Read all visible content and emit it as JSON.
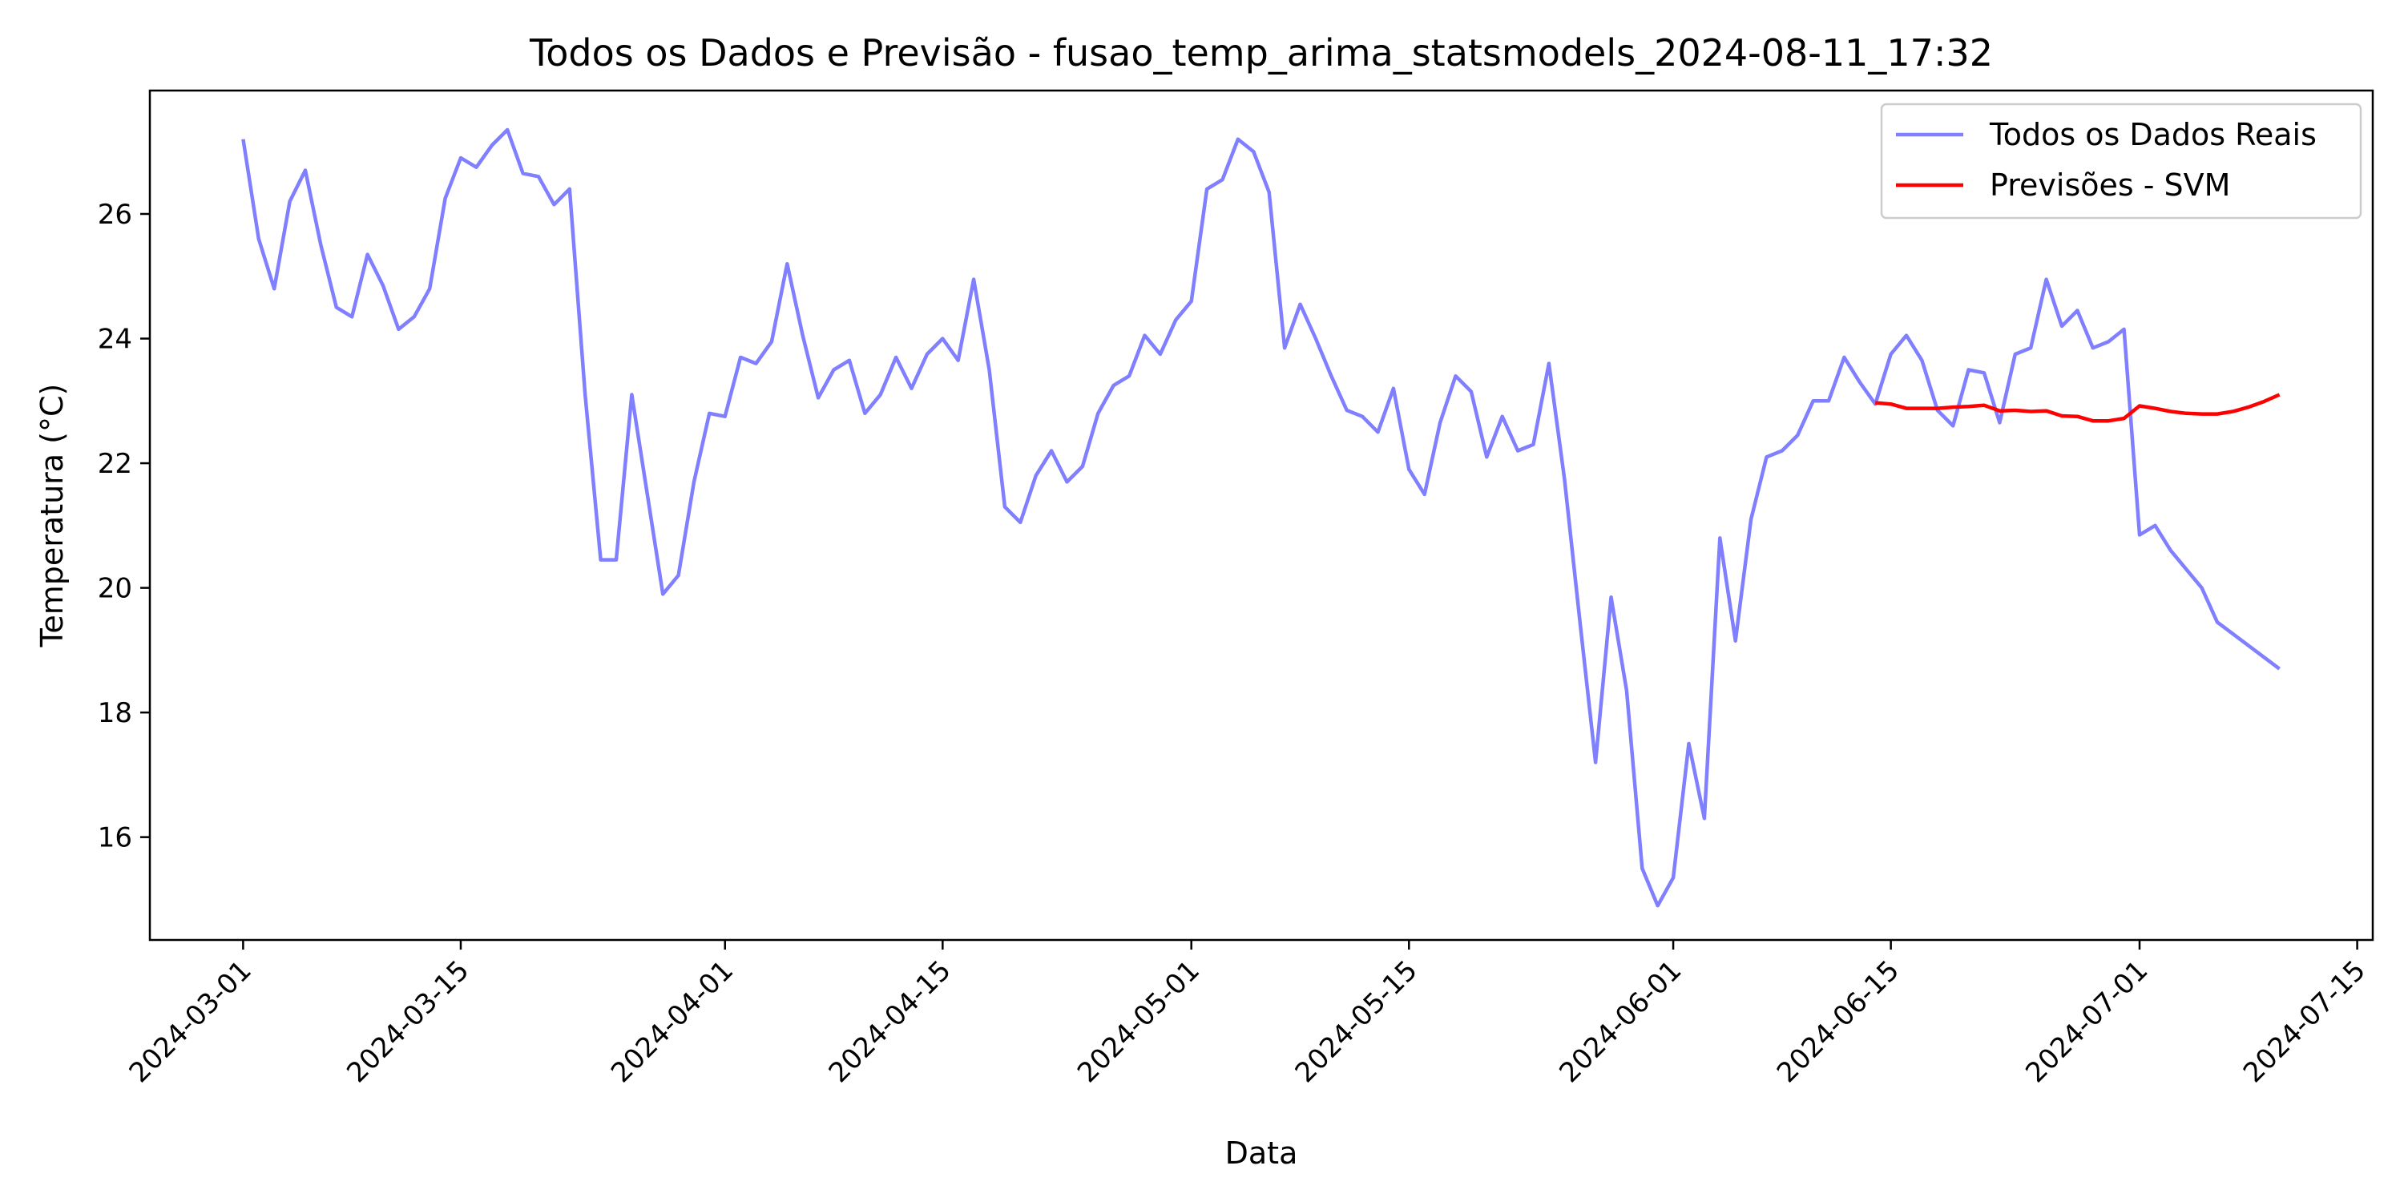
{
  "chart_data": {
    "type": "line",
    "title": "Todos os Dados e Previsão - fusao_temp_arima_statsmodels_2024-08-11_17:32",
    "xlabel": "Data",
    "ylabel": "Temperatura (°C)",
    "xlim": [
      "2024-02-24",
      "2024-07-16"
    ],
    "ylim": [
      14.35,
      27.98
    ],
    "x_ticks": [
      "2024-03-01",
      "2024-03-15",
      "2024-04-01",
      "2024-04-15",
      "2024-05-01",
      "2024-05-15",
      "2024-06-01",
      "2024-06-15",
      "2024-07-01",
      "2024-07-15"
    ],
    "y_ticks": [
      16,
      18,
      20,
      22,
      24,
      26
    ],
    "grid": false,
    "legend_position": "top-right",
    "series": [
      {
        "name": "Todos os Dados Reais",
        "color": "#7f7fff",
        "x": [
          "2024-03-01",
          "2024-03-02",
          "2024-03-03",
          "2024-03-04",
          "2024-03-05",
          "2024-03-06",
          "2024-03-07",
          "2024-03-08",
          "2024-03-09",
          "2024-03-10",
          "2024-03-11",
          "2024-03-12",
          "2024-03-13",
          "2024-03-14",
          "2024-03-15",
          "2024-03-16",
          "2024-03-17",
          "2024-03-18",
          "2024-03-19",
          "2024-03-20",
          "2024-03-21",
          "2024-03-22",
          "2024-03-23",
          "2024-03-24",
          "2024-03-25",
          "2024-03-26",
          "2024-03-27",
          "2024-03-28",
          "2024-03-29",
          "2024-03-30",
          "2024-03-31",
          "2024-04-01",
          "2024-04-02",
          "2024-04-03",
          "2024-04-04",
          "2024-04-05",
          "2024-04-06",
          "2024-04-07",
          "2024-04-08",
          "2024-04-09",
          "2024-04-10",
          "2024-04-11",
          "2024-04-12",
          "2024-04-13",
          "2024-04-14",
          "2024-04-15",
          "2024-04-16",
          "2024-04-17",
          "2024-04-18",
          "2024-04-19",
          "2024-04-20",
          "2024-04-21",
          "2024-04-22",
          "2024-04-23",
          "2024-04-24",
          "2024-04-25",
          "2024-04-26",
          "2024-04-27",
          "2024-04-28",
          "2024-04-29",
          "2024-04-30",
          "2024-05-01",
          "2024-05-02",
          "2024-05-03",
          "2024-05-04",
          "2024-05-05",
          "2024-05-06",
          "2024-05-07",
          "2024-05-08",
          "2024-05-09",
          "2024-05-10",
          "2024-05-11",
          "2024-05-12",
          "2024-05-13",
          "2024-05-14",
          "2024-05-15",
          "2024-05-16",
          "2024-05-17",
          "2024-05-18",
          "2024-05-19",
          "2024-05-20",
          "2024-05-21",
          "2024-05-22",
          "2024-05-23",
          "2024-05-24",
          "2024-05-25",
          "2024-05-26",
          "2024-05-27",
          "2024-05-28",
          "2024-05-29",
          "2024-05-30",
          "2024-05-31",
          "2024-06-01",
          "2024-06-02",
          "2024-06-03",
          "2024-06-04",
          "2024-06-05",
          "2024-06-06",
          "2024-06-07",
          "2024-06-08",
          "2024-06-09",
          "2024-06-10",
          "2024-06-11",
          "2024-06-12",
          "2024-06-13",
          "2024-06-14",
          "2024-06-15",
          "2024-06-16",
          "2024-06-17",
          "2024-06-18",
          "2024-06-19",
          "2024-06-20",
          "2024-06-21",
          "2024-06-22",
          "2024-06-23",
          "2024-06-24",
          "2024-06-25",
          "2024-06-26",
          "2024-06-27",
          "2024-06-28",
          "2024-06-29",
          "2024-06-30",
          "2024-07-01",
          "2024-07-02",
          "2024-07-03",
          "2024-07-04",
          "2024-07-05",
          "2024-07-06",
          "2024-07-10"
        ],
        "values": [
          27.2,
          25.6,
          24.8,
          26.2,
          26.7,
          25.5,
          24.5,
          24.35,
          25.35,
          24.85,
          24.15,
          24.35,
          24.8,
          26.25,
          26.9,
          26.75,
          27.1,
          27.35,
          26.65,
          26.6,
          26.15,
          26.4,
          23.1,
          20.45,
          20.45,
          23.1,
          21.5,
          19.9,
          20.2,
          21.7,
          22.8,
          22.75,
          23.7,
          23.6,
          23.95,
          25.2,
          24.05,
          23.05,
          23.5,
          23.65,
          22.8,
          23.1,
          23.7,
          23.2,
          23.75,
          24.0,
          23.65,
          24.95,
          23.5,
          21.3,
          21.05,
          21.8,
          22.2,
          21.7,
          21.95,
          22.8,
          23.25,
          23.4,
          24.05,
          23.75,
          24.3,
          24.6,
          26.4,
          26.55,
          27.2,
          27.0,
          26.35,
          23.85,
          24.55,
          24.0,
          23.4,
          22.85,
          22.75,
          22.5,
          23.2,
          21.9,
          21.5,
          22.65,
          23.4,
          23.15,
          22.1,
          22.75,
          22.2,
          22.3,
          23.6,
          21.75,
          19.45,
          17.2,
          19.85,
          18.35,
          15.5,
          14.9,
          15.35,
          17.5,
          16.3,
          20.8,
          19.15,
          21.1,
          22.1,
          22.2,
          22.45,
          23.0,
          23.0,
          23.7,
          23.3,
          22.95,
          23.75,
          24.05,
          23.65,
          22.85,
          22.6,
          23.5,
          23.45,
          22.65,
          23.75,
          23.85,
          24.95,
          24.2,
          24.45,
          23.85,
          23.95,
          24.15,
          20.85,
          21.0,
          20.6,
          20.3,
          20.0,
          19.45,
          18.7
        ]
      },
      {
        "name": "Previsões - SVM",
        "color": "#ff0000",
        "x": [
          "2024-06-14",
          "2024-06-15",
          "2024-06-16",
          "2024-06-17",
          "2024-06-18",
          "2024-06-19",
          "2024-06-20",
          "2024-06-21",
          "2024-06-22",
          "2024-06-23",
          "2024-06-24",
          "2024-06-25",
          "2024-06-26",
          "2024-06-27",
          "2024-06-28",
          "2024-06-29",
          "2024-06-30",
          "2024-07-01",
          "2024-07-02",
          "2024-07-03",
          "2024-07-04",
          "2024-07-05",
          "2024-07-06",
          "2024-07-07",
          "2024-07-08",
          "2024-07-09",
          "2024-07-10"
        ],
        "values": [
          22.97,
          22.95,
          22.88,
          22.88,
          22.88,
          22.9,
          22.91,
          22.93,
          22.84,
          22.85,
          22.83,
          22.84,
          22.76,
          22.75,
          22.68,
          22.68,
          22.72,
          22.92,
          22.88,
          22.83,
          22.8,
          22.79,
          22.79,
          22.83,
          22.9,
          22.99,
          23.1
        ]
      }
    ]
  }
}
